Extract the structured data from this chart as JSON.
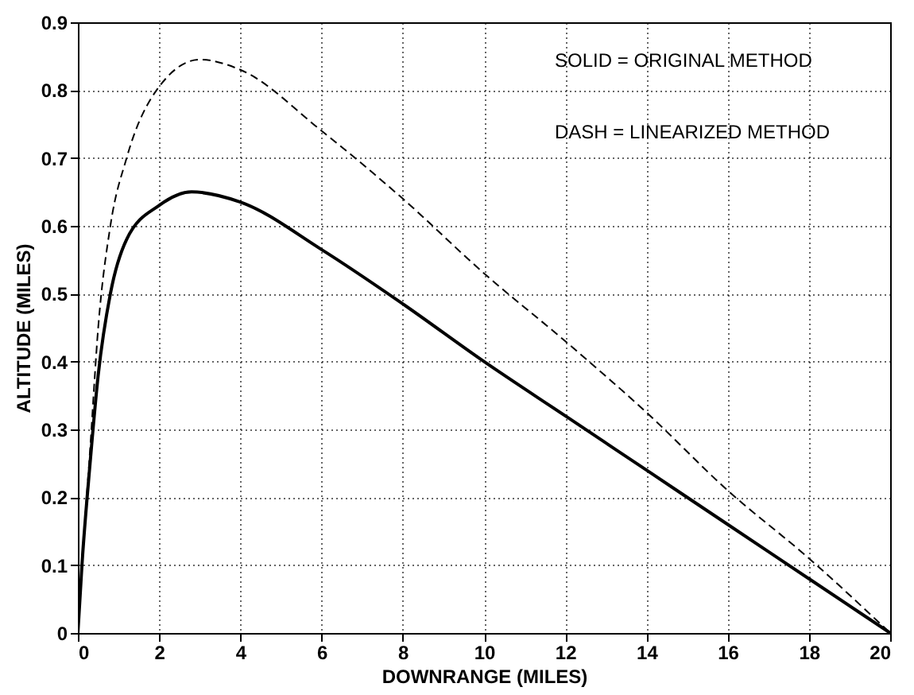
{
  "chart_data": {
    "type": "line",
    "xlabel": "DOWNRANGE (MILES)",
    "ylabel": "ALTITUDE (MILES)",
    "annotations": [
      "SOLID = ORIGINAL METHOD",
      "DASH = LINEARIZED METHOD"
    ],
    "xlim": [
      0,
      20
    ],
    "xticks": [
      0,
      2,
      4,
      6,
      8,
      10,
      12,
      14,
      16,
      18,
      20
    ],
    "ylim": [
      0,
      0.9
    ],
    "yticks": [
      0,
      0.1,
      0.2,
      0.3,
      0.4,
      0.5,
      0.6,
      0.7,
      0.8,
      0.9
    ],
    "grid": true,
    "series": [
      {
        "color": "#000000",
        "line_style": "solid",
        "x": [
          0,
          0.1,
          0.3,
          0.5,
          0.8,
          1.2,
          2,
          2.8,
          4,
          6,
          8,
          10,
          12,
          14,
          16,
          18,
          20
        ],
        "values": [
          0,
          0.1,
          0.25,
          0.38,
          0.5,
          0.58,
          0.63,
          0.65,
          0.635,
          0.565,
          0.485,
          0.4,
          0.32,
          0.24,
          0.16,
          0.08,
          0
        ]
      },
      {
        "color": "#000000",
        "line_style": "dashed",
        "x": [
          0,
          0.1,
          0.3,
          0.5,
          0.8,
          1.2,
          2,
          3,
          4,
          6,
          8,
          10,
          12,
          14,
          16,
          18,
          20
        ],
        "values": [
          0,
          0.1,
          0.27,
          0.45,
          0.6,
          0.7,
          0.805,
          0.845,
          0.83,
          0.74,
          0.64,
          0.53,
          0.43,
          0.325,
          0.21,
          0.11,
          0
        ]
      }
    ]
  }
}
